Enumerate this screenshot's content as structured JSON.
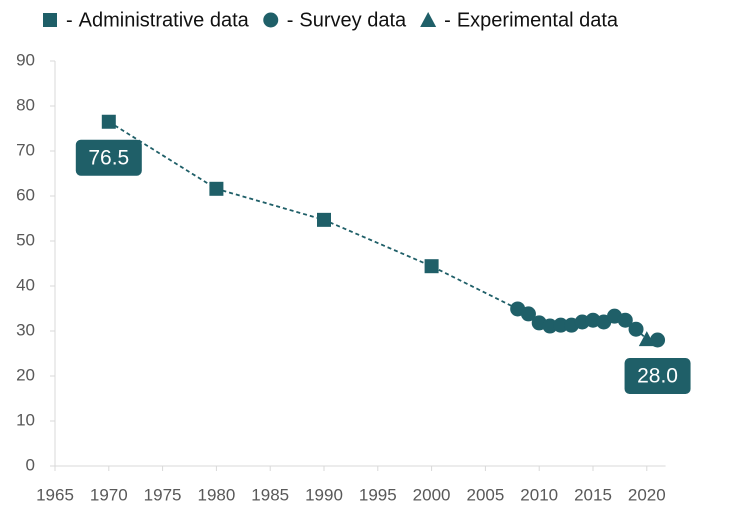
{
  "chart_data": {
    "type": "line",
    "legend_separator": "-",
    "series": [
      {
        "name": "Administrative data",
        "marker": "square",
        "color": "#1f5f68",
        "x": [
          1970,
          1980,
          1990,
          2000
        ],
        "values": [
          76.5,
          61.6,
          54.7,
          44.4
        ],
        "value_labels": [
          "76.5",
          null,
          null,
          null
        ]
      },
      {
        "name": "Survey data",
        "marker": "circle",
        "color": "#1f5f68",
        "x": [
          2008,
          2009,
          2010,
          2011,
          2012,
          2013,
          2014,
          2015,
          2016,
          2017,
          2018,
          2019,
          2021
        ],
        "values": [
          34.9,
          33.8,
          31.8,
          31.1,
          31.3,
          31.3,
          32,
          32.4,
          32,
          33.3,
          32.4,
          30.4,
          28
        ],
        "value_labels": [
          null,
          null,
          null,
          null,
          null,
          null,
          null,
          null,
          null,
          null,
          null,
          null,
          "28.0"
        ]
      },
      {
        "name": "Experimental data",
        "marker": "triangle",
        "color": "#1f5f68",
        "x": [
          2020
        ],
        "values": [
          28.2
        ]
      }
    ],
    "xlim": [
      1965,
      2021
    ],
    "xticks": [
      1965,
      1970,
      1975,
      1980,
      1985,
      1990,
      1995,
      2000,
      2005,
      2010,
      2015,
      2020
    ],
    "ylim": [
      0,
      90
    ],
    "yticks": [
      0,
      10,
      20,
      30,
      40,
      50,
      60,
      70,
      80,
      90
    ],
    "line_style": "dashed",
    "grid": false
  }
}
